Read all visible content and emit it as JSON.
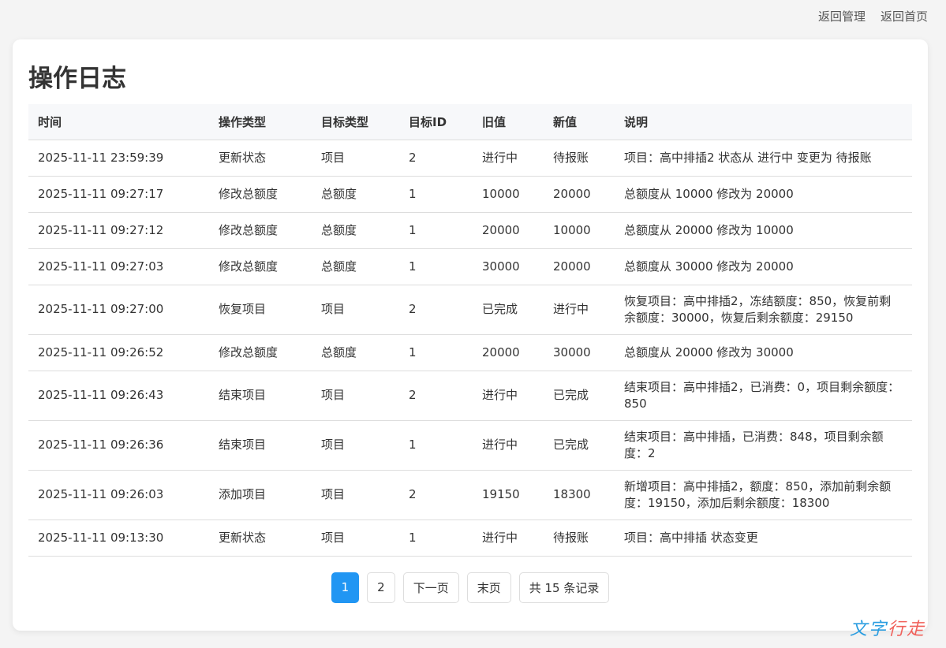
{
  "nav": {
    "admin": "返回管理",
    "home": "返回首页"
  },
  "title": "操作日志",
  "columns": [
    "时间",
    "操作类型",
    "目标类型",
    "目标ID",
    "旧值",
    "新值",
    "说明"
  ],
  "rows": [
    [
      "2025-11-11 23:59:39",
      "更新状态",
      "项目",
      "2",
      "进行中",
      "待报账",
      "项目：高中排插2 状态从 进行中 变更为 待报账"
    ],
    [
      "2025-11-11 09:27:17",
      "修改总额度",
      "总额度",
      "1",
      "10000",
      "20000",
      "总额度从 10000 修改为 20000"
    ],
    [
      "2025-11-11 09:27:12",
      "修改总额度",
      "总额度",
      "1",
      "20000",
      "10000",
      "总额度从 20000 修改为 10000"
    ],
    [
      "2025-11-11 09:27:03",
      "修改总额度",
      "总额度",
      "1",
      "30000",
      "20000",
      "总额度从 30000 修改为 20000"
    ],
    [
      "2025-11-11 09:27:00",
      "恢复项目",
      "项目",
      "2",
      "已完成",
      "进行中",
      "恢复项目：高中排插2，冻结额度：850，恢复前剩余额度：30000，恢复后剩余额度：29150"
    ],
    [
      "2025-11-11 09:26:52",
      "修改总额度",
      "总额度",
      "1",
      "20000",
      "30000",
      "总额度从 20000 修改为 30000"
    ],
    [
      "2025-11-11 09:26:43",
      "结束项目",
      "项目",
      "2",
      "进行中",
      "已完成",
      "结束项目：高中排插2，已消费：0，项目剩余额度：850"
    ],
    [
      "2025-11-11 09:26:36",
      "结束项目",
      "项目",
      "1",
      "进行中",
      "已完成",
      "结束项目：高中排插，已消费：848，项目剩余额度：2"
    ],
    [
      "2025-11-11 09:26:03",
      "添加项目",
      "项目",
      "2",
      "19150",
      "18300",
      "新增项目：高中排插2，额度：850，添加前剩余额度：19150，添加后剩余额度：18300"
    ],
    [
      "2025-11-11 09:13:30",
      "更新状态",
      "项目",
      "1",
      "进行中",
      "待报账",
      "项目：高中排插 状态变更"
    ]
  ],
  "pagination": {
    "pages": [
      "1",
      "2"
    ],
    "current": "1",
    "next": "下一页",
    "last": "末页",
    "total": "共 15 条记录"
  },
  "watermark": "文字行走",
  "colors": {
    "accent": "#2196f3"
  }
}
